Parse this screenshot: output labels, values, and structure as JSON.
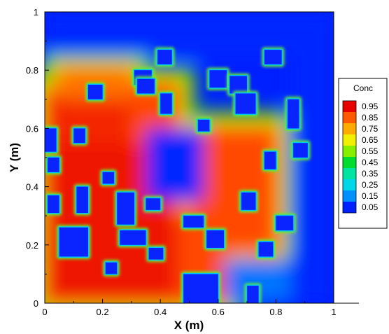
{
  "chart_data": {
    "type": "heatmap",
    "title": "",
    "xlabel": "X (m)",
    "ylabel": "Y (m)",
    "xlim": [
      0,
      1
    ],
    "ylim": [
      0,
      1
    ],
    "xticks": [
      "0",
      "0.2",
      "0.4",
      "0.6",
      "0.8",
      "1"
    ],
    "yticks": [
      "0",
      "0.2",
      "0.4",
      "0.6",
      "0.8",
      "1"
    ],
    "colorbar": {
      "title": "Conc",
      "levels": [
        "0.95",
        "0.85",
        "0.75",
        "0.65",
        "0.55",
        "0.45",
        "0.35",
        "0.25",
        "0.15",
        "0.05"
      ],
      "colors": [
        "#e80000",
        "#ff5a00",
        "#ffaa00",
        "#f0f000",
        "#88ee00",
        "#00dd30",
        "#00e6a0",
        "#00d8e8",
        "#0090ff",
        "#0020ff"
      ],
      "placement": "right"
    },
    "high_zones": [
      {
        "x": [
          0.0,
          0.46
        ],
        "y": [
          0.0,
          0.6
        ],
        "conc": 0.97
      },
      {
        "x": [
          0.0,
          0.3
        ],
        "y": [
          0.55,
          0.73
        ],
        "conc": 0.95
      },
      {
        "x": [
          0.05,
          0.3
        ],
        "y": [
          0.7,
          0.8
        ],
        "conc": 0.85
      },
      {
        "x": [
          0.3,
          0.46
        ],
        "y": [
          0.55,
          0.75
        ],
        "conc": 0.9
      },
      {
        "x": [
          0.5,
          0.8
        ],
        "y": [
          0.18,
          0.6
        ],
        "conc": 0.9
      },
      {
        "x": [
          0.46,
          0.62
        ],
        "y": [
          0.0,
          0.3
        ],
        "conc": 0.9
      }
    ],
    "low_zones": [
      {
        "x": [
          0.0,
          1.0
        ],
        "y": [
          0.85,
          1.0
        ],
        "conc": 0.05
      },
      {
        "x": [
          0.85,
          1.0
        ],
        "y": [
          0.0,
          0.85
        ],
        "conc": 0.05
      },
      {
        "x": [
          0.35,
          0.55
        ],
        "y": [
          0.35,
          0.6
        ],
        "conc": 0.05
      },
      {
        "x": [
          0.62,
          0.85
        ],
        "y": [
          0.0,
          0.15
        ],
        "conc": 0.15
      }
    ],
    "obstacles": [
      {
        "x": [
          0.0,
          0.04
        ],
        "y": [
          0.52,
          0.6
        ]
      },
      {
        "x": [
          0.01,
          0.05
        ],
        "y": [
          0.45,
          0.5
        ]
      },
      {
        "x": [
          0.01,
          0.05
        ],
        "y": [
          0.31,
          0.37
        ]
      },
      {
        "x": [
          0.05,
          0.15
        ],
        "y": [
          0.16,
          0.26
        ]
      },
      {
        "x": [
          0.1,
          0.14
        ],
        "y": [
          0.55,
          0.6
        ]
      },
      {
        "x": [
          0.11,
          0.15
        ],
        "y": [
          0.31,
          0.4
        ]
      },
      {
        "x": [
          0.15,
          0.2
        ],
        "y": [
          0.7,
          0.75
        ]
      },
      {
        "x": [
          0.2,
          0.24
        ],
        "y": [
          0.41,
          0.45
        ]
      },
      {
        "x": [
          0.21,
          0.25
        ],
        "y": [
          0.1,
          0.14
        ]
      },
      {
        "x": [
          0.25,
          0.31
        ],
        "y": [
          0.27,
          0.38
        ]
      },
      {
        "x": [
          0.26,
          0.35
        ],
        "y": [
          0.2,
          0.25
        ]
      },
      {
        "x": [
          0.31,
          0.37
        ],
        "y": [
          0.75,
          0.8
        ]
      },
      {
        "x": [
          0.32,
          0.38
        ],
        "y": [
          0.72,
          0.77
        ]
      },
      {
        "x": [
          0.35,
          0.4
        ],
        "y": [
          0.32,
          0.36
        ]
      },
      {
        "x": [
          0.36,
          0.41
        ],
        "y": [
          0.15,
          0.19
        ]
      },
      {
        "x": [
          0.39,
          0.44
        ],
        "y": [
          0.82,
          0.87
        ]
      },
      {
        "x": [
          0.4,
          0.44
        ],
        "y": [
          0.65,
          0.72
        ]
      },
      {
        "x": [
          0.48,
          0.55
        ],
        "y": [
          0.26,
          0.3
        ]
      },
      {
        "x": [
          0.53,
          0.57
        ],
        "y": [
          0.59,
          0.63
        ]
      },
      {
        "x": [
          0.48,
          0.6
        ],
        "y": [
          0.0,
          0.1
        ]
      },
      {
        "x": [
          0.56,
          0.62
        ],
        "y": [
          0.19,
          0.25
        ]
      },
      {
        "x": [
          0.57,
          0.63
        ],
        "y": [
          0.74,
          0.8
        ]
      },
      {
        "x": [
          0.64,
          0.7
        ],
        "y": [
          0.72,
          0.78
        ]
      },
      {
        "x": [
          0.66,
          0.73
        ],
        "y": [
          0.65,
          0.72
        ]
      },
      {
        "x": [
          0.68,
          0.73
        ],
        "y": [
          0.32,
          0.38
        ]
      },
      {
        "x": [
          0.7,
          0.74
        ],
        "y": [
          0.0,
          0.06
        ]
      },
      {
        "x": [
          0.74,
          0.79
        ],
        "y": [
          0.16,
          0.21
        ]
      },
      {
        "x": [
          0.76,
          0.8
        ],
        "y": [
          0.46,
          0.52
        ]
      },
      {
        "x": [
          0.76,
          0.82
        ],
        "y": [
          0.82,
          0.87
        ]
      },
      {
        "x": [
          0.8,
          0.86
        ],
        "y": [
          0.25,
          0.3
        ]
      },
      {
        "x": [
          0.84,
          0.88
        ],
        "y": [
          0.6,
          0.7
        ]
      },
      {
        "x": [
          0.86,
          0.91
        ],
        "y": [
          0.5,
          0.55
        ]
      }
    ]
  }
}
